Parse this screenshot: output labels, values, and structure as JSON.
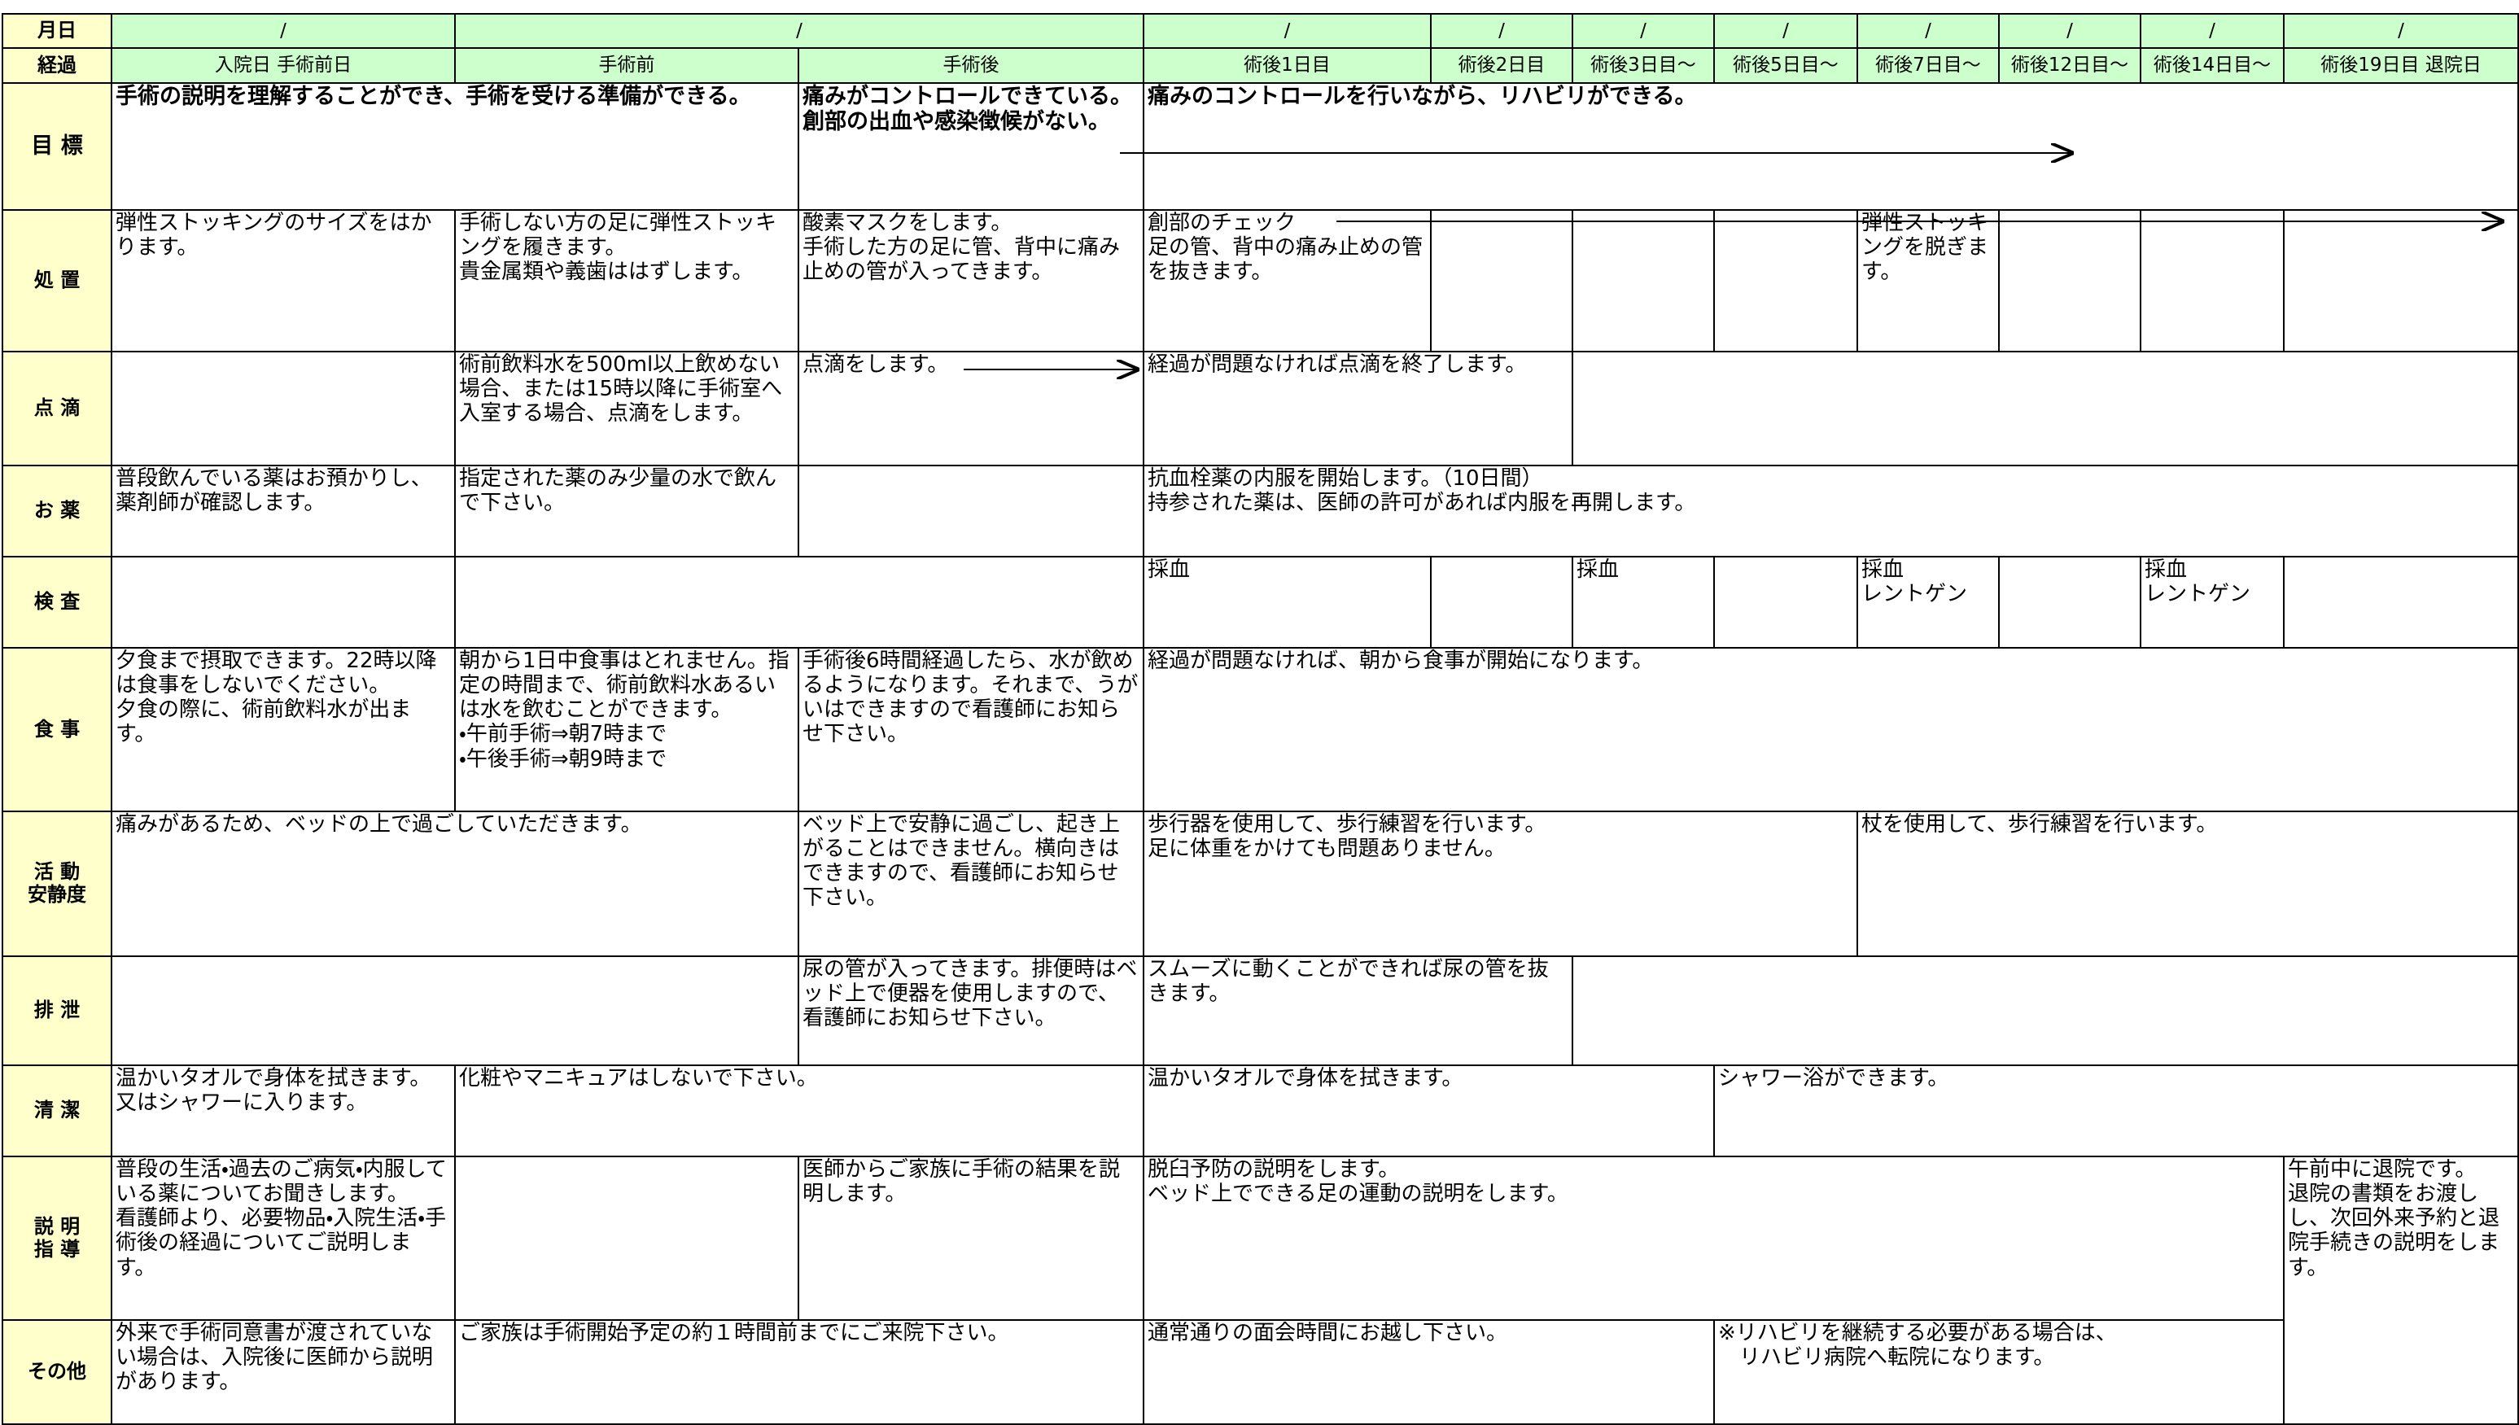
{
  "header": {
    "date_label": "月日",
    "dates": [
      "/",
      "/",
      "/",
      "/",
      "/",
      "/",
      "/",
      "/",
      "/",
      "/"
    ],
    "stage_label": "経過",
    "stages": [
      "入院日 手術前日",
      "手術前",
      "手術後",
      "術後1日目",
      "術後2日目",
      "術後3日目〜",
      "術後5日目〜",
      "術後7日目〜",
      "術後12日目〜",
      "術後14日目〜",
      "術後19日目 退院日"
    ]
  },
  "rows": [
    {
      "label": "目 標",
      "cells": [
        "手術の説明を理解することができ、手術を受ける準備ができる。",
        "痛みがコントロールできている。\n創部の出血や感染徴候がない。",
        "痛みのコントロールを行いながら、リハビリができる。"
      ]
    },
    {
      "label": "処 置",
      "cells": [
        "弾性ストッキングのサイズをはかります。",
        "手術しない方の足に弾性ストッキングを履きます。\n貴金属類や義歯ははずします。",
        "酸素マスクをします。\n手術した方の足に管、背中に痛み止めの管が入ってきます。",
        "創部のチェック\n足の管、背中の痛み止めの管を抜きます。",
        "弾性ストッキングを脱ぎます。"
      ]
    },
    {
      "label": "点 滴",
      "cells": [
        "術前飲料水を500ml以上飲めない場合、または15時以降に手術室へ入室する場合、点滴をします。",
        "点滴をします。",
        "経過が問題なければ点滴を終了します。"
      ]
    },
    {
      "label": "お 薬",
      "cells": [
        "普段飲んでいる薬はお預かりし、薬剤師が確認します。",
        "指定された薬のみ少量の水で飲んで下さい。",
        "抗血栓薬の内服を開始します。（10日間）\n持参された薬は、医師の許可があれば内服を再開します。"
      ]
    },
    {
      "label": "検 査",
      "cells": [
        "採血",
        "採血",
        "採血\nレントゲン",
        "採血\nレントゲン"
      ]
    },
    {
      "label": "食 事",
      "cells": [
        "夕食まで摂取できます。22時以降は食事をしないでください。\n夕食の際に、術前飲料水が出ます。",
        "朝から1日中食事はとれません。指定の時間まで、術前飲料水あるいは水を飲むことができます。\n・午前手術⇒朝7時まで\n・午後手術⇒朝9時まで",
        "手術後6時間経過したら、水が飲めるようになります。それまで、うがいはできますので看護師にお知らせ下さい。",
        "経過が問題なければ、朝から食事が開始になります。"
      ]
    },
    {
      "label": "活 動\n安静度",
      "cells": [
        "痛みがあるため、ベッドの上で過ごしていただきます。",
        "ベッド上で安静に過ごし、起き上がることはできません。横向きはできますので、看護師にお知らせ下さい。",
        "歩行器を使用して、歩行練習を行います。\n足に体重をかけても問題ありません。",
        "杖を使用して、歩行練習を行います。"
      ]
    },
    {
      "label": "排 泄",
      "cells": [
        "尿の管が入ってきます。排便時はベッド上で便器を使用しますので、看護師にお知らせ下さい。",
        "スムーズに動くことができれば尿の管を抜きます。"
      ]
    },
    {
      "label": "清 潔",
      "cells": [
        "温かいタオルで身体を拭きます。又はシャワーに入ります。",
        "化粧やマニキュアはしないで下さい。",
        "温かいタオルで身体を拭きます。",
        "シャワー浴ができます。"
      ]
    },
    {
      "label": "説 明\n指 導",
      "cells": [
        "普段の生活・過去のご病気・内服している薬についてお聞きします。\n看護師より、必要物品・入院生活・手術後の経過についてご説明します。",
        "医師からご家族に手術の結果を説明します。",
        "脱臼予防の説明をします。\nベッド上でできる足の運動の説明をします。",
        "午前中に退院です。\n退院の書類をお渡しし、次回外来予約と退院手続きの説明をします。"
      ]
    },
    {
      "label": "その他",
      "cells": [
        "外来で手術同意書が渡されていない場合は、入院後に医師から説明があります。",
        "ご家族は手術開始予定の約１時間前までにご来院下さい。",
        "通常通りの面会時間にお越し下さい。",
        "※リハビリを継続する必要がある場合は、\n　リハビリ病院へ転院になります。"
      ]
    }
  ]
}
